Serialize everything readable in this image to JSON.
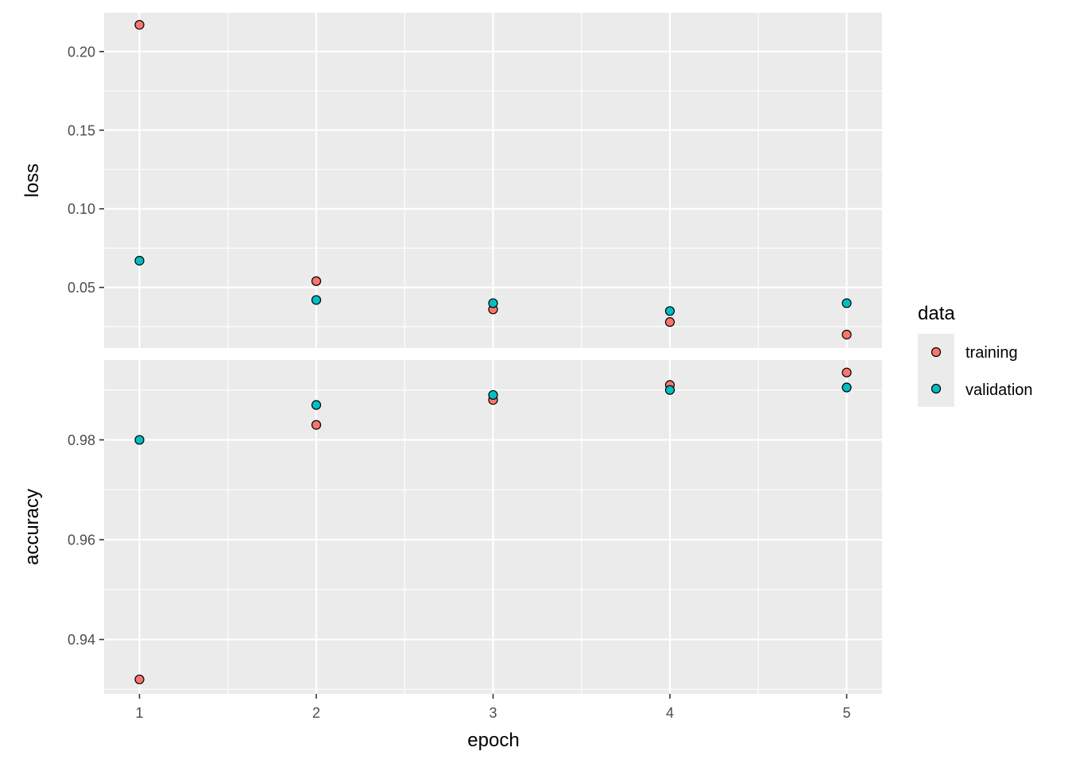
{
  "chart_data": {
    "type": "scatter",
    "x_label": "epoch",
    "x": [
      1,
      2,
      3,
      4,
      5
    ],
    "x_ticks": [
      "1",
      "2",
      "3",
      "4",
      "5"
    ],
    "legend": {
      "title": "data",
      "position": "right",
      "entries": [
        {
          "name": "training",
          "color": "#F8766D"
        },
        {
          "name": "validation",
          "color": "#00BFC4"
        }
      ]
    },
    "panels": [
      {
        "metric": "loss",
        "ylim": [
          0.0114,
          0.2252
        ],
        "y_ticks": [
          0.05,
          0.1,
          0.15,
          0.2
        ],
        "y_tick_labels": [
          "0.05",
          "0.10",
          "0.15",
          "0.20"
        ],
        "series": [
          {
            "name": "training",
            "values": [
              0.217,
              0.054,
              0.036,
              0.028,
              0.02
            ]
          },
          {
            "name": "validation",
            "values": [
              0.067,
              0.042,
              0.04,
              0.035,
              0.04
            ]
          }
        ]
      },
      {
        "metric": "accuracy",
        "ylim": [
          0.9291,
          0.996
        ],
        "y_ticks": [
          0.94,
          0.96,
          0.98
        ],
        "y_tick_labels": [
          "0.94",
          "0.96",
          "0.98"
        ],
        "series": [
          {
            "name": "training",
            "values": [
              0.932,
              0.983,
              0.988,
              0.991,
              0.9935
            ]
          },
          {
            "name": "validation",
            "values": [
              0.98,
              0.987,
              0.989,
              0.99,
              0.9905
            ]
          }
        ]
      }
    ],
    "grid": true
  }
}
